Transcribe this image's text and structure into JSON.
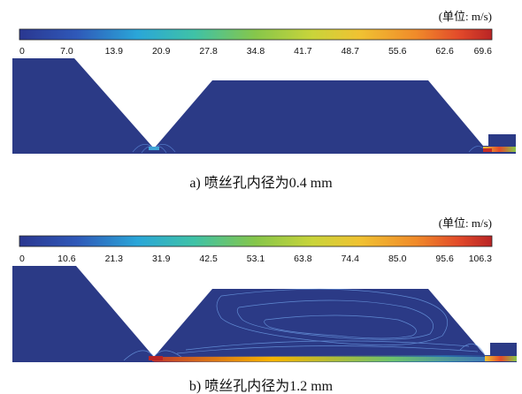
{
  "figure": {
    "panels": [
      {
        "caption": "a) 喷丝孔内径为0.4 mm",
        "unit": "(单位: m/s)"
      },
      {
        "caption": "b) 喷丝孔内径为1.2 mm",
        "unit": "(单位: m/s)"
      }
    ]
  },
  "chart_data": [
    {
      "type": "heatmap",
      "colormap": "jet",
      "colorbar": {
        "min": 0,
        "max": 69.6,
        "tick_labels": [
          "0",
          "7.0",
          "13.9",
          "20.9",
          "27.8",
          "34.8",
          "41.7",
          "48.7",
          "55.6",
          "62.6",
          "69.6"
        ]
      },
      "domain_color": "#2b3a86",
      "high_velocity_zones": [
        "left nozzle tip (small)",
        "right outlet (small, up to max)"
      ]
    },
    {
      "type": "heatmap",
      "colormap": "jet",
      "colorbar": {
        "min": 0,
        "max": 106.3,
        "tick_labels": [
          "0",
          "10.6",
          "21.3",
          "31.9",
          "42.5",
          "53.1",
          "63.8",
          "74.4",
          "85.0",
          "95.6",
          "106.3"
        ]
      },
      "domain_color": "#2b3a86",
      "high_velocity_zones": [
        "jet along bottom boundary from nozzle tip (up to max)",
        "right outlet",
        "recirculation contours in right cavity"
      ]
    }
  ]
}
